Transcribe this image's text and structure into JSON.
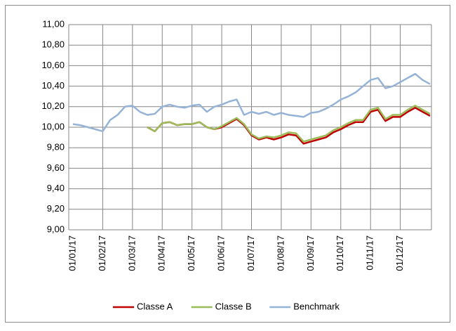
{
  "chart_data": {
    "type": "line",
    "categories": [
      "01/01/17",
      null,
      null,
      null,
      "01/02/17",
      null,
      null,
      null,
      "01/03/17",
      null,
      null,
      null,
      "01/04/17",
      null,
      null,
      null,
      "01/05/17",
      null,
      null,
      null,
      "01/06/17",
      null,
      null,
      null,
      "01/07/17",
      null,
      null,
      null,
      "01/08/17",
      null,
      null,
      null,
      "01/09/17",
      null,
      null,
      null,
      "01/10/17",
      null,
      null,
      null,
      "01/11/17",
      null,
      null,
      null,
      "01/12/17",
      null,
      null,
      null,
      null
    ],
    "series": [
      {
        "name": "Classe A",
        "color": "#c00000",
        "values": [
          null,
          null,
          null,
          null,
          null,
          null,
          null,
          null,
          null,
          null,
          10.0,
          9.96,
          10.04,
          10.05,
          10.02,
          10.03,
          10.03,
          10.05,
          10.0,
          9.98,
          10.0,
          10.04,
          10.08,
          10.02,
          9.92,
          9.88,
          9.9,
          9.88,
          9.9,
          9.93,
          9.92,
          9.84,
          9.86,
          9.88,
          9.9,
          9.95,
          9.98,
          10.02,
          10.05,
          10.05,
          10.15,
          10.17,
          10.06,
          10.1,
          10.1,
          10.15,
          10.19,
          10.15,
          10.11
        ]
      },
      {
        "name": "Classe B",
        "color": "#9bbb59",
        "values": [
          null,
          null,
          null,
          null,
          null,
          null,
          null,
          null,
          null,
          null,
          10.0,
          9.96,
          10.04,
          10.05,
          10.02,
          10.03,
          10.03,
          10.05,
          10.0,
          9.98,
          10.01,
          10.05,
          10.09,
          10.03,
          9.93,
          9.89,
          9.91,
          9.9,
          9.92,
          9.95,
          9.94,
          9.86,
          9.88,
          9.9,
          9.92,
          9.97,
          10.0,
          10.04,
          10.07,
          10.07,
          10.17,
          10.19,
          10.08,
          10.12,
          10.12,
          10.17,
          10.21,
          10.17,
          10.13
        ]
      },
      {
        "name": "Benchmark",
        "color": "#95b3d7",
        "values": [
          10.03,
          10.02,
          10.0,
          9.98,
          9.96,
          10.07,
          10.12,
          10.2,
          10.21,
          10.15,
          10.12,
          10.13,
          10.2,
          10.22,
          10.2,
          10.19,
          10.21,
          10.22,
          10.15,
          10.2,
          10.22,
          10.25,
          10.27,
          10.12,
          10.15,
          10.13,
          10.15,
          10.12,
          10.14,
          10.12,
          10.11,
          10.1,
          10.14,
          10.15,
          10.18,
          10.22,
          10.27,
          10.3,
          10.34,
          10.4,
          10.46,
          10.48,
          10.38,
          10.4,
          10.44,
          10.48,
          10.52,
          10.46,
          10.42
        ]
      }
    ],
    "ylim": [
      9,
      11
    ],
    "yticks": [
      {
        "value": 9,
        "label": "9,00"
      },
      {
        "value": 9.2,
        "label": "9,20"
      },
      {
        "value": 9.4,
        "label": "9,40"
      },
      {
        "value": 9.6,
        "label": "9,60"
      },
      {
        "value": 9.8,
        "label": "9,80"
      },
      {
        "value": 10,
        "label": "10,00"
      },
      {
        "value": 10.2,
        "label": "10,20"
      },
      {
        "value": 10.4,
        "label": "10,40"
      },
      {
        "value": 10.6,
        "label": "10,60"
      },
      {
        "value": 10.8,
        "label": "10,80"
      },
      {
        "value": 11,
        "label": "11,00"
      }
    ],
    "grid": true,
    "legend": "bottom"
  }
}
